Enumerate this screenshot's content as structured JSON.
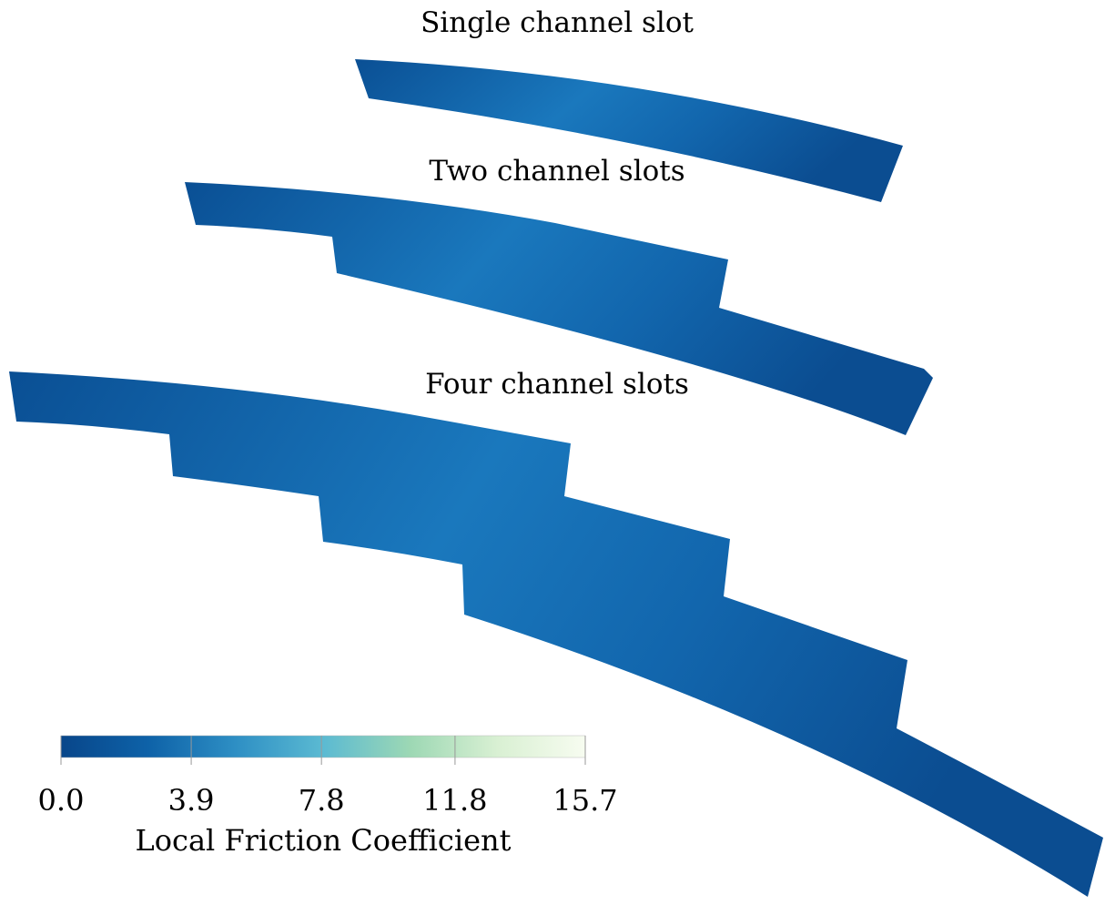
{
  "panels": [
    {
      "title": "Single channel slot"
    },
    {
      "title": "Two channel slots"
    },
    {
      "title": "Four channel slots"
    }
  ],
  "colorbar": {
    "title": "Local Friction Coefficient",
    "range": [
      0,
      15.7
    ],
    "ticks": [
      {
        "value": 0,
        "label": "0.0"
      },
      3.9,
      7.8,
      11.8,
      15.7
    ],
    "colors": [
      "#08468a",
      "#0e62a8",
      "#2e8fc4",
      "#5bbad2",
      "#9dd8b4",
      "#d9f0d3",
      "#f7fcf0"
    ]
  }
}
